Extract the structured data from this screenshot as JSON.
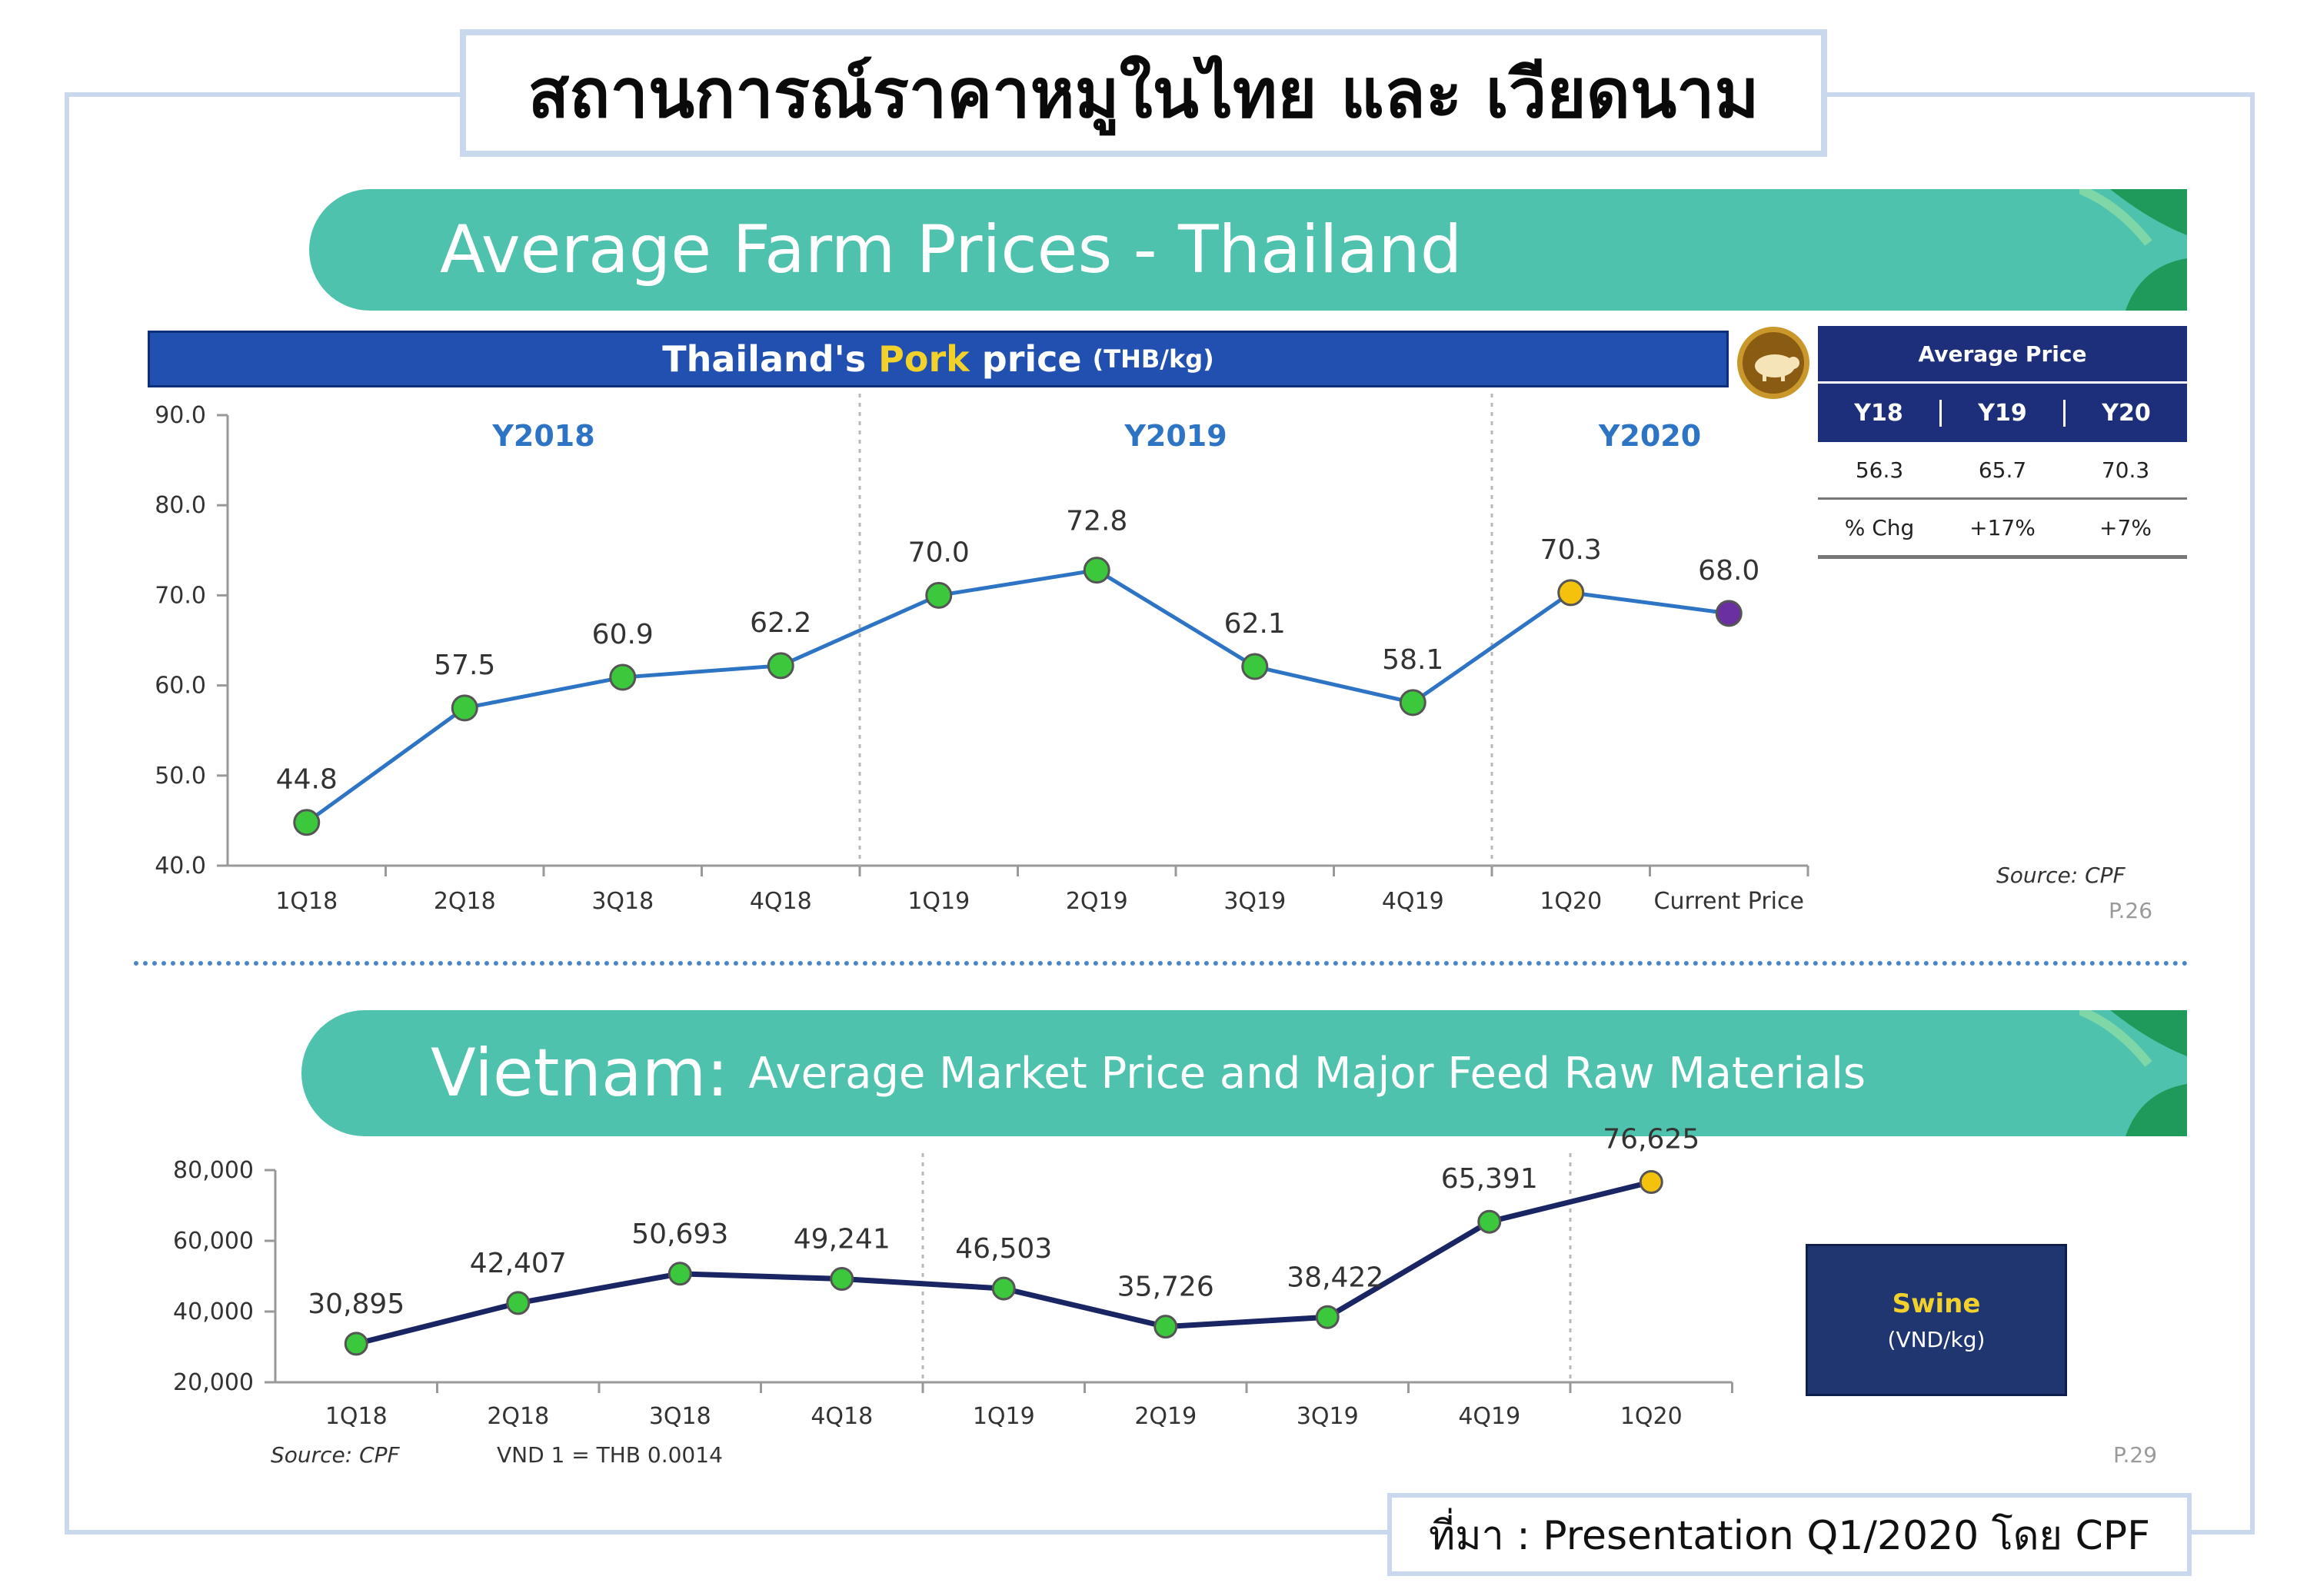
{
  "main_title": "สถานการณ์ราคาหมูในไทย และ เวียดนาม",
  "thai_section": {
    "banner_title": "Average Farm Prices - Thailand",
    "bar_title_1": "Thailand's",
    "bar_title_pork": "Pork",
    "bar_title_2": "price",
    "bar_unit": "(THB/kg)",
    "source": "Source: CPF",
    "page": "P.26",
    "avg_table": {
      "title": "Average Price",
      "years": [
        "Y18",
        "Y19",
        "Y20"
      ],
      "values": [
        "56.3",
        "65.7",
        "70.3"
      ],
      "chg_label": "% Chg",
      "chg_values": [
        "+17%",
        "+7%"
      ]
    }
  },
  "viet_section": {
    "banner_strong": "Vietnam:",
    "banner_rest": "Average Market Price and Major Feed Raw Materials",
    "source": "Source: CPF",
    "fx_note": "VND 1 = THB 0.0014",
    "page": "P.29",
    "swine_label": "Swine",
    "swine_unit": "(VND/kg)"
  },
  "footer_source": "ที่มา : Presentation Q1/2020 โดย CPF",
  "colors": {
    "teal_banner": "#4fc2ad",
    "thai_line": "#2d74c4",
    "viet_line": "#1a2563",
    "marker_green": "#3cc83c",
    "marker_yellow": "#f4c20d",
    "marker_purple": "#6a2fa0",
    "year_label": "#2d74c4"
  },
  "chart_data": [
    {
      "type": "line",
      "title": "Thailand's Pork price (THB/kg)",
      "categories": [
        "1Q18",
        "2Q18",
        "3Q18",
        "4Q18",
        "1Q19",
        "2Q19",
        "3Q19",
        "4Q19",
        "1Q20",
        "Current Price"
      ],
      "values": [
        44.8,
        57.5,
        60.9,
        62.2,
        70.0,
        72.8,
        62.1,
        58.1,
        70.3,
        68.0
      ],
      "labels": [
        "44.8",
        "57.5",
        "60.9",
        "62.2",
        "70.0",
        "72.8",
        "62.1",
        "58.1",
        "70.3",
        "68.0"
      ],
      "marker_colors": [
        "green",
        "green",
        "green",
        "green",
        "green",
        "green",
        "green",
        "green",
        "yellow",
        "purple"
      ],
      "ylim": [
        40,
        90
      ],
      "yticks": [
        "40.0",
        "50.0",
        "60.0",
        "70.0",
        "80.0",
        "90.0"
      ],
      "year_groups": [
        "Y2018",
        "Y2019",
        "Y2020"
      ],
      "grid": false
    },
    {
      "type": "line",
      "title": "Swine (VND/kg)",
      "categories": [
        "1Q18",
        "2Q18",
        "3Q18",
        "4Q18",
        "1Q19",
        "2Q19",
        "3Q19",
        "4Q19",
        "1Q20"
      ],
      "values": [
        30895,
        42407,
        50693,
        49241,
        46503,
        35726,
        38422,
        65391,
        76625
      ],
      "labels": [
        "30,895",
        "42,407",
        "50,693",
        "49,241",
        "46,503",
        "35,726",
        "38,422",
        "65,391",
        "76,625"
      ],
      "marker_colors": [
        "green",
        "green",
        "green",
        "green",
        "green",
        "green",
        "green",
        "green",
        "yellow"
      ],
      "ylim": [
        20000,
        80000
      ],
      "yticks": [
        "20,000",
        "40,000",
        "60,000",
        "80,000"
      ],
      "grid": false
    }
  ]
}
